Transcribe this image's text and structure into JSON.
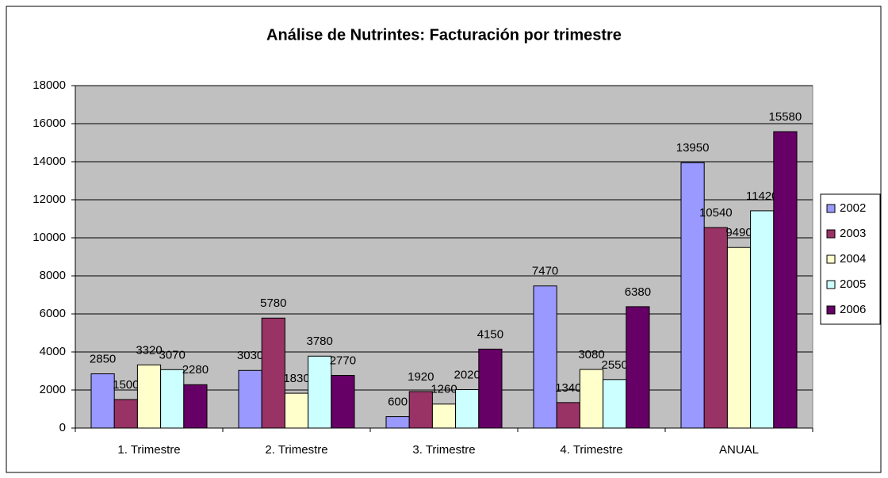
{
  "chart_data": {
    "type": "bar",
    "title": "Análise de Nutrintes: Facturación por trimestre",
    "categories": [
      "1. Trimestre",
      "2. Trimestre",
      "3. Trimestre",
      "4. Trimestre",
      "ANUAL"
    ],
    "series": [
      {
        "name": "2002",
        "color": "#9999ff",
        "values": [
          2850,
          3030,
          600,
          7470,
          13950
        ]
      },
      {
        "name": "2003",
        "color": "#993366",
        "values": [
          1500,
          5780,
          1920,
          1340,
          10540
        ]
      },
      {
        "name": "2004",
        "color": "#ffffcc",
        "values": [
          3320,
          1830,
          1260,
          3080,
          9490
        ]
      },
      {
        "name": "2005",
        "color": "#ccffff",
        "values": [
          3070,
          3780,
          2020,
          2550,
          11420
        ]
      },
      {
        "name": "2006",
        "color": "#660066",
        "values": [
          2280,
          2770,
          4150,
          6380,
          15580
        ]
      }
    ],
    "ylim": [
      0,
      18000
    ],
    "yticks": [
      0,
      2000,
      4000,
      6000,
      8000,
      10000,
      12000,
      14000,
      16000,
      18000
    ],
    "grid": true,
    "legend": "right"
  }
}
